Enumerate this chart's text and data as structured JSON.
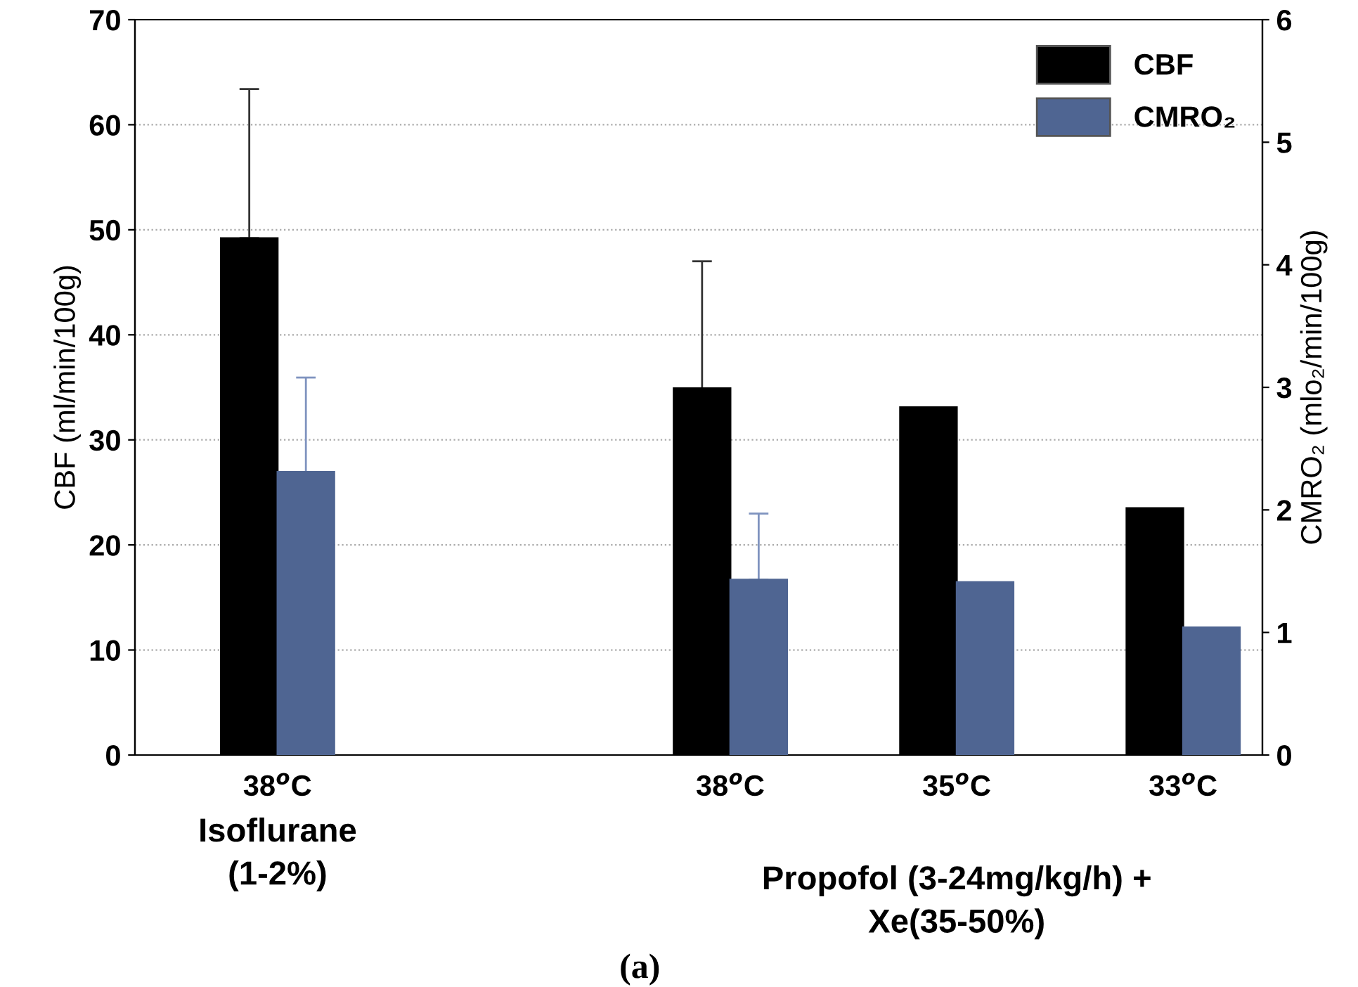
{
  "chart_data": {
    "type": "bar",
    "categories": [
      "38$^{o}$C",
      null,
      "38$^{o}$C",
      "35$^{o}$C",
      "33$^{o}$C"
    ],
    "series": [
      {
        "name": "CBF",
        "color": "#000000",
        "values": [
          49.2,
          null,
          34.9,
          33.1,
          23.5
        ],
        "errors": [
          [
            49.2,
            63.4
          ],
          null,
          [
            34.9,
            47.0
          ],
          null,
          null
        ]
      },
      {
        "name": "CMRO₂",
        "color": "#4f6592",
        "axis": "y2",
        "values": [
          2.31,
          null,
          1.43,
          1.41,
          1.04
        ],
        "errors": [
          [
            2.31,
            3.08
          ],
          null,
          [
            1.43,
            1.97
          ],
          null,
          null
        ]
      }
    ],
    "ylabel": "CBF (ml/min/100g)",
    "y2label": "CMRO₂ (mlo₂/min/100g)",
    "ylim": [
      0,
      70
    ],
    "yticks": [
      0,
      10,
      20,
      30,
      40,
      50,
      60,
      70
    ],
    "y2lim": [
      0,
      6
    ],
    "y2ticks": [
      0,
      1,
      2,
      3,
      4,
      5,
      6
    ],
    "grid": "y",
    "legend": "top right",
    "annotations": [
      "Isoflurane\n(1-2%)",
      "Propofol (3-24mg/kg/h) +\nXe(35-50%)",
      "(a)"
    ]
  }
}
